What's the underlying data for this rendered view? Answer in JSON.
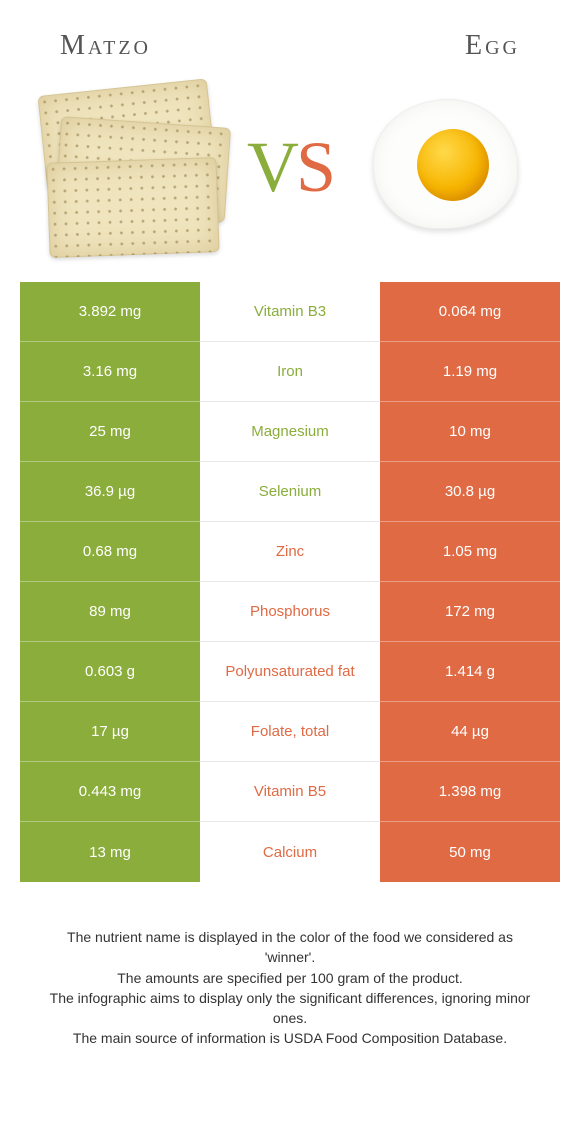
{
  "header": {
    "left_title": "Matzo",
    "right_title": "Egg",
    "vs_v": "V",
    "vs_s": "S"
  },
  "colors": {
    "left": "#8aad3b",
    "right": "#e06a44",
    "background": "#ffffff",
    "row_divider_light": "rgba(255,255,255,0.35)",
    "mid_divider": "#e8e8e8",
    "text_dark": "#333333"
  },
  "table": {
    "rows": [
      {
        "nutrient": "Vitamin B3",
        "left": "3.892 mg",
        "right": "0.064 mg",
        "winner": "left"
      },
      {
        "nutrient": "Iron",
        "left": "3.16 mg",
        "right": "1.19 mg",
        "winner": "left"
      },
      {
        "nutrient": "Magnesium",
        "left": "25 mg",
        "right": "10 mg",
        "winner": "left"
      },
      {
        "nutrient": "Selenium",
        "left": "36.9 µg",
        "right": "30.8 µg",
        "winner": "left"
      },
      {
        "nutrient": "Zinc",
        "left": "0.68 mg",
        "right": "1.05 mg",
        "winner": "right"
      },
      {
        "nutrient": "Phosphorus",
        "left": "89 mg",
        "right": "172 mg",
        "winner": "right"
      },
      {
        "nutrient": "Polyunsaturated fat",
        "left": "0.603 g",
        "right": "1.414 g",
        "winner": "right"
      },
      {
        "nutrient": "Folate, total",
        "left": "17 µg",
        "right": "44 µg",
        "winner": "right"
      },
      {
        "nutrient": "Vitamin B5",
        "left": "0.443 mg",
        "right": "1.398 mg",
        "winner": "right"
      },
      {
        "nutrient": "Calcium",
        "left": "13 mg",
        "right": "50 mg",
        "winner": "right"
      }
    ]
  },
  "footnotes": {
    "line1": "The nutrient name is displayed in the color of the food we considered as 'winner'.",
    "line2": "The amounts are specified per 100 gram of the product.",
    "line3": "The infographic aims to display only the significant differences, ignoring minor ones.",
    "line4": "The main source of information is USDA Food Composition Database."
  }
}
